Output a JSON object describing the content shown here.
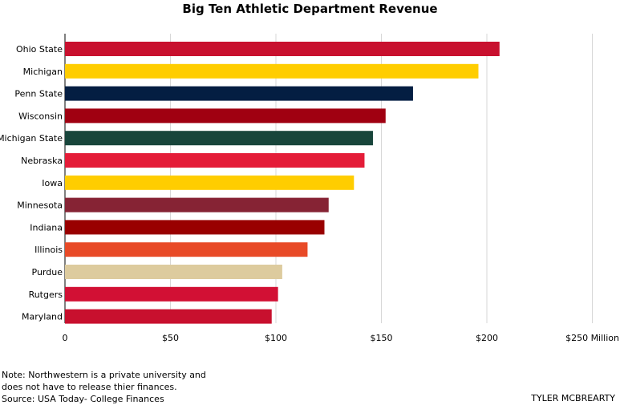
{
  "chart_data": {
    "type": "bar",
    "orientation": "horizontal",
    "title": "Big Ten Athletic Department Revenue",
    "categories": [
      "Ohio State",
      "Michigan",
      "Penn State",
      "Wisconsin",
      "Michigan State",
      "Nebraska",
      "Iowa",
      "Minnesota",
      "Indiana",
      "Illinois",
      "Purdue",
      "Rutgers",
      "Maryland"
    ],
    "values": [
      206,
      196,
      165,
      152,
      146,
      142,
      137,
      125,
      123,
      115,
      103,
      101,
      98
    ],
    "bar_colors": [
      "#c8102e",
      "#ffcd00",
      "#041e42",
      "#a00011",
      "#18453b",
      "#e41c38",
      "#ffcd00",
      "#862334",
      "#990000",
      "#e84a27",
      "#ddcb9e",
      "#d21034",
      "#c8102e"
    ],
    "xlim": [
      0,
      250
    ],
    "x_ticks": [
      "0",
      "$50",
      "$100",
      "$150",
      "$200",
      "$250 Million"
    ],
    "grid": true
  },
  "footer": {
    "note": "Note: Northwestern is a private university and does not have to release thier finances.",
    "source": "Source: USA Today- College Finances",
    "byline": "TYLER MCBREARTY"
  }
}
